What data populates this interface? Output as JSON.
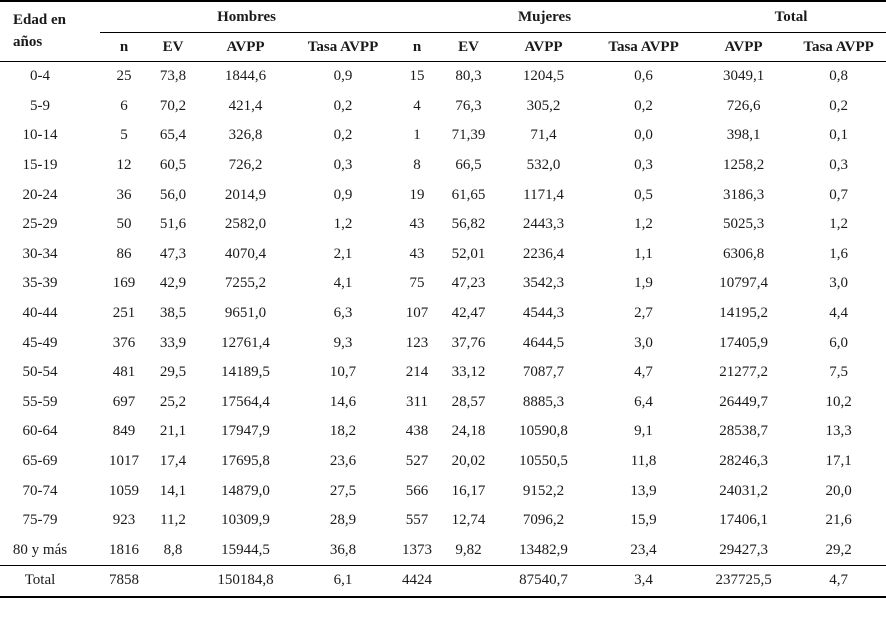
{
  "chart_data": {
    "type": "table",
    "corner_header": [
      "Edad en",
      "años"
    ],
    "column_groups": [
      {
        "label": "Hombres",
        "columns": [
          "n",
          "EV",
          "AVPP",
          "Tasa AVPP"
        ]
      },
      {
        "label": "Mujeres",
        "columns": [
          "n",
          "EV",
          "AVPP",
          "Tasa AVPP"
        ]
      },
      {
        "label": "Total",
        "columns": [
          "AVPP",
          "Tasa AVPP"
        ]
      }
    ],
    "subheaders": [
      "n",
      "EV",
      "AVPP",
      "Tasa AVPP",
      "n",
      "EV",
      "AVPP",
      "Tasa AVPP",
      "AVPP",
      "Tasa AVPP"
    ],
    "rows": [
      [
        "0-4",
        "25",
        "73,8",
        "1844,6",
        "0,9",
        "15",
        "80,3",
        "1204,5",
        "0,6",
        "3049,1",
        "0,8"
      ],
      [
        "5-9",
        "6",
        "70,2",
        "421,4",
        "0,2",
        "4",
        "76,3",
        "305,2",
        "0,2",
        "726,6",
        "0,2"
      ],
      [
        "10-14",
        "5",
        "65,4",
        "326,8",
        "0,2",
        "1",
        "71,39",
        "71,4",
        "0,0",
        "398,1",
        "0,1"
      ],
      [
        "15-19",
        "12",
        "60,5",
        "726,2",
        "0,3",
        "8",
        "66,5",
        "532,0",
        "0,3",
        "1258,2",
        "0,3"
      ],
      [
        "20-24",
        "36",
        "56,0",
        "2014,9",
        "0,9",
        "19",
        "61,65",
        "1171,4",
        "0,5",
        "3186,3",
        "0,7"
      ],
      [
        "25-29",
        "50",
        "51,6",
        "2582,0",
        "1,2",
        "43",
        "56,82",
        "2443,3",
        "1,2",
        "5025,3",
        "1,2"
      ],
      [
        "30-34",
        "86",
        "47,3",
        "4070,4",
        "2,1",
        "43",
        "52,01",
        "2236,4",
        "1,1",
        "6306,8",
        "1,6"
      ],
      [
        "35-39",
        "169",
        "42,9",
        "7255,2",
        "4,1",
        "75",
        "47,23",
        "3542,3",
        "1,9",
        "10797,4",
        "3,0"
      ],
      [
        "40-44",
        "251",
        "38,5",
        "9651,0",
        "6,3",
        "107",
        "42,47",
        "4544,3",
        "2,7",
        "14195,2",
        "4,4"
      ],
      [
        "45-49",
        "376",
        "33,9",
        "12761,4",
        "9,3",
        "123",
        "37,76",
        "4644,5",
        "3,0",
        "17405,9",
        "6,0"
      ],
      [
        "50-54",
        "481",
        "29,5",
        "14189,5",
        "10,7",
        "214",
        "33,12",
        "7087,7",
        "4,7",
        "21277,2",
        "7,5"
      ],
      [
        "55-59",
        "697",
        "25,2",
        "17564,4",
        "14,6",
        "311",
        "28,57",
        "8885,3",
        "6,4",
        "26449,7",
        "10,2"
      ],
      [
        "60-64",
        "849",
        "21,1",
        "17947,9",
        "18,2",
        "438",
        "24,18",
        "10590,8",
        "9,1",
        "28538,7",
        "13,3"
      ],
      [
        "65-69",
        "1017",
        "17,4",
        "17695,8",
        "23,6",
        "527",
        "20,02",
        "10550,5",
        "11,8",
        "28246,3",
        "17,1"
      ],
      [
        "70-74",
        "1059",
        "14,1",
        "14879,0",
        "27,5",
        "566",
        "16,17",
        "9152,2",
        "13,9",
        "24031,2",
        "20,0"
      ],
      [
        "75-79",
        "923",
        "11,2",
        "10309,9",
        "28,9",
        "557",
        "12,74",
        "7096,2",
        "15,9",
        "17406,1",
        "21,6"
      ],
      [
        "80 y más",
        "1816",
        "8,8",
        "15944,5",
        "36,8",
        "1373",
        "9,82",
        "13482,9",
        "23,4",
        "29427,3",
        "29,2"
      ]
    ],
    "total_row": [
      "Total",
      "7858",
      "",
      "150184,8",
      "6,1",
      "4424",
      "",
      "87540,7",
      "3,4",
      "237725,5",
      "4,7"
    ]
  }
}
